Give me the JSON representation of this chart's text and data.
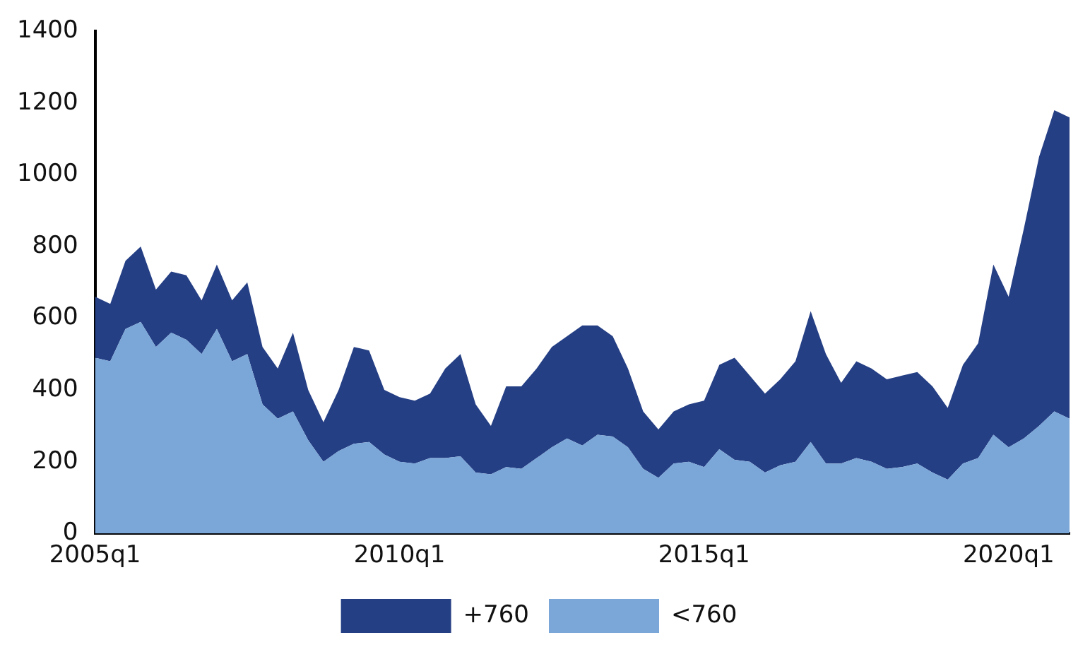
{
  "chart_data": {
    "type": "area",
    "stacked": true,
    "legend": "bottom",
    "grid": false,
    "categories": [
      "2005q1",
      null,
      null,
      null,
      null,
      null,
      null,
      null,
      null,
      null,
      null,
      null,
      null,
      null,
      null,
      null,
      null,
      null,
      null,
      null,
      "2010q1",
      null,
      null,
      null,
      null,
      null,
      null,
      null,
      null,
      null,
      null,
      null,
      null,
      null,
      null,
      null,
      null,
      null,
      null,
      null,
      "2015q1",
      null,
      null,
      null,
      null,
      null,
      null,
      null,
      null,
      null,
      null,
      null,
      null,
      null,
      null,
      null,
      null,
      null,
      null,
      null,
      "2020q1",
      null,
      null,
      null,
      null
    ],
    "ylim": [
      0,
      1400
    ],
    "yticks": [
      0,
      200,
      400,
      600,
      800,
      1000,
      1200,
      1400
    ],
    "series": [
      {
        "name": "<760",
        "color": "#7aa6d8",
        "values": [
          490,
          480,
          570,
          590,
          520,
          560,
          540,
          500,
          570,
          480,
          500,
          360,
          320,
          340,
          260,
          200,
          230,
          250,
          255,
          220,
          200,
          195,
          210,
          210,
          215,
          170,
          165,
          185,
          180,
          210,
          240,
          265,
          245,
          275,
          270,
          240,
          180,
          155,
          195,
          200,
          185,
          235,
          205,
          200,
          170,
          190,
          200,
          255,
          195,
          195,
          210,
          200,
          180,
          185,
          195,
          170,
          150,
          195,
          210,
          275,
          240,
          265,
          300,
          340,
          320
        ]
      },
      {
        "name": "+760",
        "color": "#253f85",
        "values": [
          170,
          160,
          190,
          210,
          160,
          170,
          180,
          150,
          180,
          170,
          200,
          160,
          140,
          220,
          140,
          110,
          170,
          270,
          255,
          180,
          180,
          175,
          180,
          250,
          285,
          190,
          135,
          225,
          230,
          250,
          280,
          285,
          335,
          305,
          280,
          220,
          160,
          135,
          145,
          160,
          185,
          235,
          285,
          240,
          220,
          240,
          280,
          365,
          305,
          225,
          270,
          260,
          250,
          255,
          255,
          240,
          200,
          275,
          320,
          475,
          420,
          585,
          750,
          840,
          840
        ]
      }
    ]
  }
}
